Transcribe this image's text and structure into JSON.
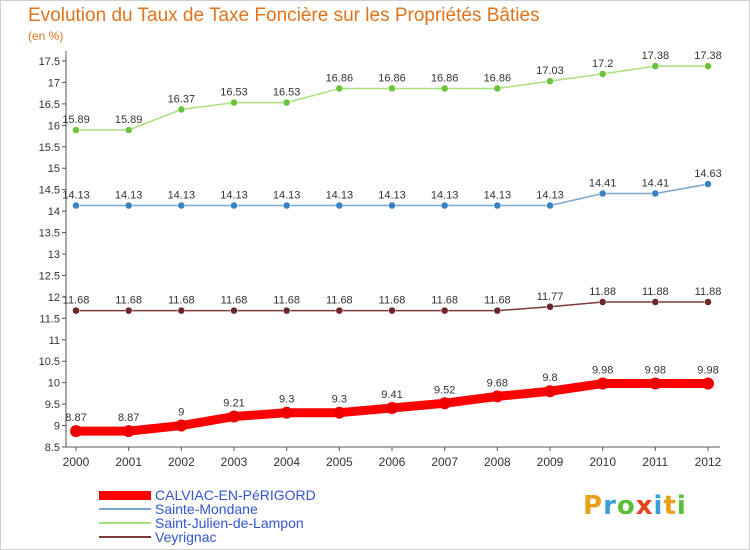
{
  "header": {
    "title": "Evolution du Taux de Taxe Foncière sur les Propriétés Bâties",
    "unit": "(en %)"
  },
  "logo": {
    "text": "Proxiti",
    "colors": [
      "#e8a21a",
      "#3aa0d8",
      "#5bbf3a",
      "#e8451f",
      "#3aa0d8",
      "#e8a21a",
      "#5bbf3a"
    ]
  },
  "chart_data": {
    "type": "line",
    "categories": [
      "2000",
      "2001",
      "2002",
      "2003",
      "2004",
      "2005",
      "2006",
      "2007",
      "2008",
      "2009",
      "2010",
      "2011",
      "2012"
    ],
    "ylim": [
      8.5,
      17.5
    ],
    "yticks": [
      "8.5",
      "9",
      "9.5",
      "10",
      "10.5",
      "11",
      "11.5",
      "12",
      "12.5",
      "13",
      "13.5",
      "14",
      "14.5",
      "15",
      "15.5",
      "16",
      "16.5",
      "17",
      "17.5"
    ],
    "grid": false,
    "legend_position": "bottom-left",
    "series": [
      {
        "name": "CALVIAC-EN-PéRIGORD",
        "color": "#ff0000",
        "marker": "#ee0000",
        "width": 9,
        "radius": 6,
        "values": [
          8.87,
          8.87,
          9,
          9.21,
          9.3,
          9.3,
          9.41,
          9.52,
          9.68,
          9.8,
          9.98,
          9.98,
          9.98
        ],
        "labels": [
          "8.87",
          "8.87",
          "9",
          "9.21",
          "9.3",
          "9.3",
          "9.41",
          "9.52",
          "9.68",
          "9.8",
          "9.98",
          "9.98",
          "9.98"
        ]
      },
      {
        "name": "Sainte-Mondane",
        "color": "#7aa6cf",
        "marker": "#3b82c4",
        "width": 1.5,
        "radius": 3.5,
        "values": [
          14.13,
          14.13,
          14.13,
          14.13,
          14.13,
          14.13,
          14.13,
          14.13,
          14.13,
          14.13,
          14.41,
          14.41,
          14.63
        ],
        "labels": [
          "14.13",
          "14.13",
          "14.13",
          "14.13",
          "14.13",
          "14.13",
          "14.13",
          "14.13",
          "14.13",
          "14.13",
          "14.41",
          "14.41",
          "14.63"
        ]
      },
      {
        "name": "Saint-Julien-de-Lampon",
        "color": "#a8e07a",
        "marker": "#6cc23a",
        "width": 1.5,
        "radius": 3.5,
        "values": [
          15.89,
          15.89,
          16.37,
          16.53,
          16.53,
          16.86,
          16.86,
          16.86,
          16.86,
          17.03,
          17.2,
          17.38,
          17.38
        ],
        "labels": [
          "15.89",
          "15.89",
          "16.37",
          "16.53",
          "16.53",
          "16.86",
          "16.86",
          "16.86",
          "16.86",
          "17.03",
          "17.2",
          "17.38",
          "17.38"
        ]
      },
      {
        "name": "Veyrignac",
        "color": "#7a3a3a",
        "marker": "#6a2828",
        "width": 1.5,
        "radius": 3.5,
        "values": [
          11.68,
          11.68,
          11.68,
          11.68,
          11.68,
          11.68,
          11.68,
          11.68,
          11.68,
          11.77,
          11.88,
          11.88,
          11.88
        ],
        "labels": [
          "11.68",
          "11.68",
          "11.68",
          "11.68",
          "11.68",
          "11.68",
          "11.68",
          "11.68",
          "11.68",
          "11.77",
          "11.88",
          "11.88",
          "11.88"
        ]
      }
    ]
  }
}
